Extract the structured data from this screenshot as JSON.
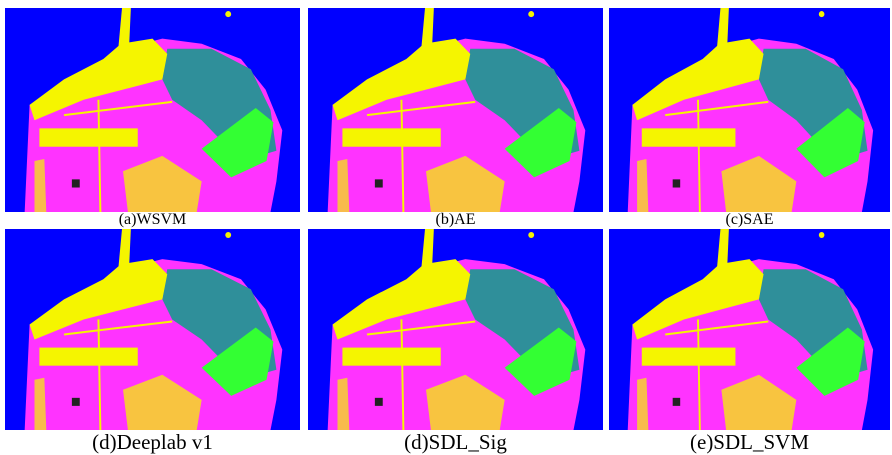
{
  "figure": {
    "panels": [
      {
        "caption": "(a)WSVM"
      },
      {
        "caption": "(b)AE"
      },
      {
        "caption": "(c)SAE"
      },
      {
        "caption": "(d)Deeplab v1"
      },
      {
        "caption": "(d)SDL_Sig"
      },
      {
        "caption": "(e)SDL_SVM"
      }
    ]
  }
}
